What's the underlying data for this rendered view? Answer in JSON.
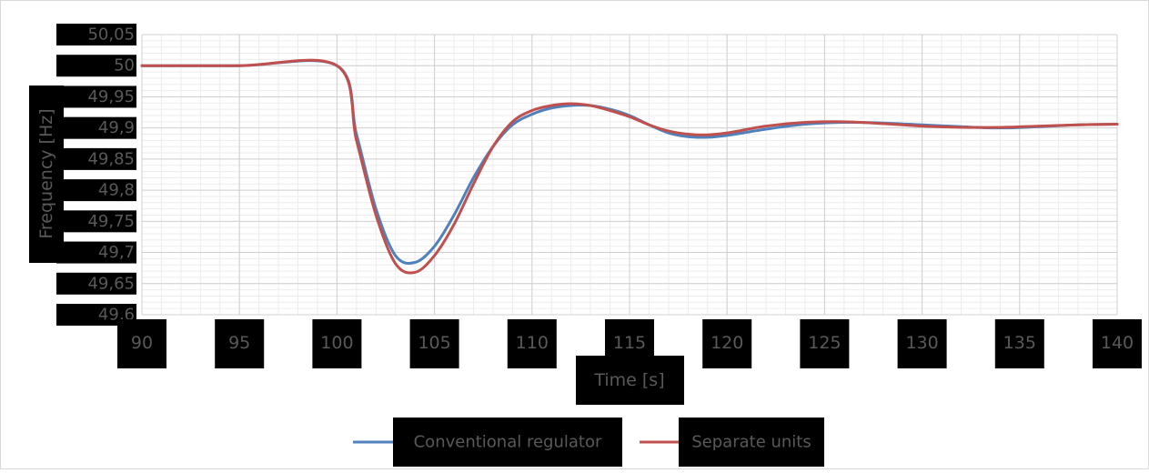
{
  "chart_data": {
    "type": "line",
    "title": "",
    "xlabel": "Time [s]",
    "ylabel": "Frequency [Hz]",
    "xlim": [
      90,
      140
    ],
    "ylim": [
      49.6,
      50.05
    ],
    "x_ticks": [
      90,
      95,
      100,
      105,
      110,
      115,
      120,
      125,
      130,
      135,
      140
    ],
    "x_tick_labels": [
      "90",
      "95",
      "100",
      "105",
      "110",
      "115",
      "120",
      "125",
      "130",
      "135",
      "140"
    ],
    "y_ticks": [
      49.6,
      49.65,
      49.7,
      49.75,
      49.8,
      49.85,
      49.9,
      49.95,
      50,
      50.05
    ],
    "y_tick_labels": [
      "49,6",
      "49,65",
      "49,7",
      "49,75",
      "49,8",
      "49,85",
      "49,9",
      "49,95",
      "50",
      "50,05"
    ],
    "grid": true,
    "legend_position": "bottom",
    "series": [
      {
        "name": "Conventional regulator",
        "color": "#4f81bd",
        "x": [
          90,
          95,
          100,
          101,
          102,
          103,
          104,
          105,
          106,
          107,
          108,
          109,
          110,
          111,
          112,
          113,
          114,
          115,
          116,
          117,
          118,
          119,
          120,
          122,
          124,
          126,
          128,
          130,
          132,
          134,
          136,
          138,
          140
        ],
        "y": [
          50.0,
          50.0,
          50.0,
          49.89,
          49.77,
          49.695,
          49.684,
          49.71,
          49.76,
          49.82,
          49.87,
          49.905,
          49.922,
          49.932,
          49.936,
          49.936,
          49.93,
          49.92,
          49.905,
          49.892,
          49.886,
          49.885,
          49.888,
          49.898,
          49.906,
          49.909,
          49.908,
          49.905,
          49.902,
          49.9,
          49.902,
          49.905,
          49.906
        ]
      },
      {
        "name": "Separate units",
        "color": "#c0504d",
        "x": [
          90,
          95,
          100,
          101,
          102,
          103,
          104,
          105,
          106,
          107,
          108,
          109,
          110,
          111,
          112,
          113,
          114,
          115,
          116,
          117,
          118,
          119,
          120,
          122,
          124,
          126,
          128,
          130,
          132,
          134,
          136,
          138,
          140
        ],
        "y": [
          50.0,
          50.0,
          50.0,
          49.88,
          49.76,
          49.682,
          49.668,
          49.695,
          49.745,
          49.81,
          49.87,
          49.91,
          49.928,
          49.936,
          49.939,
          49.936,
          49.928,
          49.918,
          49.905,
          49.895,
          49.89,
          49.889,
          49.892,
          49.903,
          49.909,
          49.91,
          49.907,
          49.903,
          49.901,
          49.901,
          49.903,
          49.905,
          49.906
        ]
      }
    ]
  }
}
